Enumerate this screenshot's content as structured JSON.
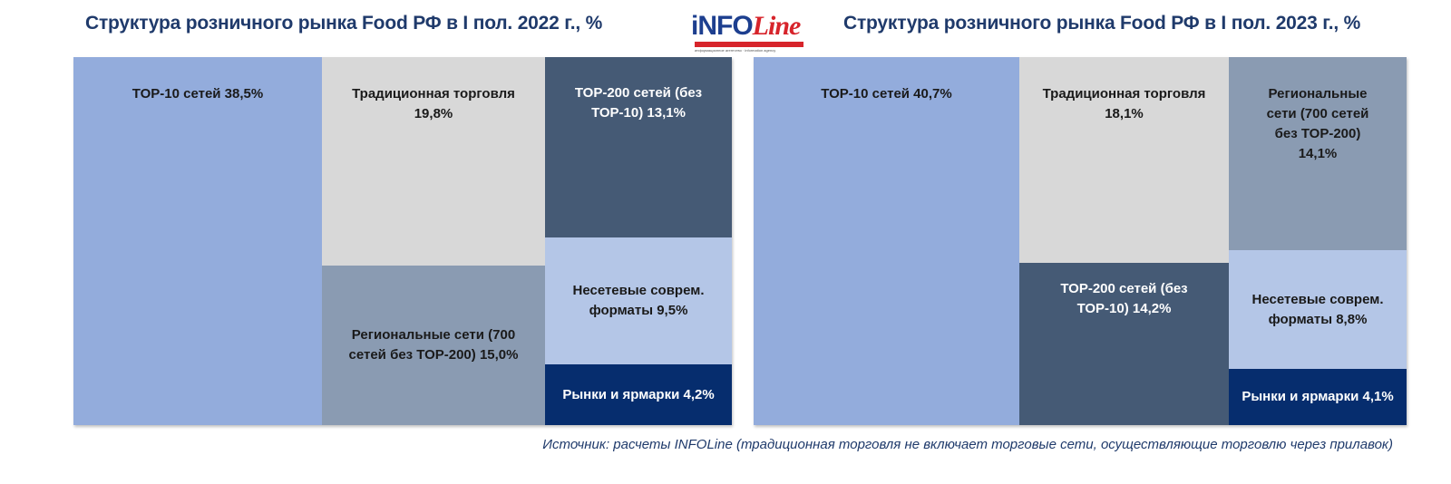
{
  "logo": {
    "brand_a": "iNFO",
    "brand_b": "Line",
    "tagline": "информационное агентство · information agency"
  },
  "colors": {
    "top10": "#93acdc",
    "traditional": "#d8d8d8",
    "top200": "#455a75",
    "regional": "#8a9bb2",
    "nonchain": "#b4c6e7",
    "markets": "#062d6e",
    "title": "#1f3a6b"
  },
  "chart_data": [
    {
      "type": "treemap",
      "title": "Структура розничного рынка Food РФ в I пол. 2022 г., %",
      "unit": "%",
      "segments": [
        {
          "name": "ТОР-10 сетей",
          "value": 38.5,
          "label": "ТОР-10 сетей 38,5%"
        },
        {
          "name": "Традиционная торговля",
          "value": 19.8,
          "label": "Традиционная торговля\n19,8%"
        },
        {
          "name": "Региональные сети (700 сетей без ТОР-200)",
          "value": 15.0,
          "label": "Региональные сети (700\nсетей без ТОР-200) 15,0%"
        },
        {
          "name": "ТОР-200 сетей (без ТОР-10)",
          "value": 13.1,
          "label": "ТОР-200 сетей (без\nТОР-10) 13,1%"
        },
        {
          "name": "Несетевые соврем. форматы",
          "value": 9.5,
          "label": "Несетевые соврем.\nформаты 9,5%"
        },
        {
          "name": "Рынки и ярмарки",
          "value": 4.2,
          "label": "Рынки и ярмарки 4,2%"
        }
      ]
    },
    {
      "type": "treemap",
      "title": "Структура розничного рынка Food РФ в I пол. 2023 г., %",
      "unit": "%",
      "segments": [
        {
          "name": "ТОР-10 сетей",
          "value": 40.7,
          "label": "ТОР-10 сетей 40,7%"
        },
        {
          "name": "Традиционная торговля",
          "value": 18.1,
          "label": "Традиционная торговля\n18,1%"
        },
        {
          "name": "ТОР-200 сетей (без ТОР-10)",
          "value": 14.2,
          "label": "ТОР-200 сетей (без\nТОР-10) 14,2%"
        },
        {
          "name": "Региональные сети (700 сетей без ТОР-200)",
          "value": 14.1,
          "label": "Региональные\nсети (700 сетей\nбез ТОР-200)\n14,1%"
        },
        {
          "name": "Несетевые соврем. форматы",
          "value": 8.8,
          "label": "Несетевые соврем.\nформаты 8,8%"
        },
        {
          "name": "Рынки и ярмарки",
          "value": 4.1,
          "label": "Рынки и ярмарки 4,1%"
        }
      ]
    }
  ],
  "source": "Источник: расчеты INFOLine (традиционная торговля не включает торговые сети, осуществляющие торговлю через прилавок)"
}
